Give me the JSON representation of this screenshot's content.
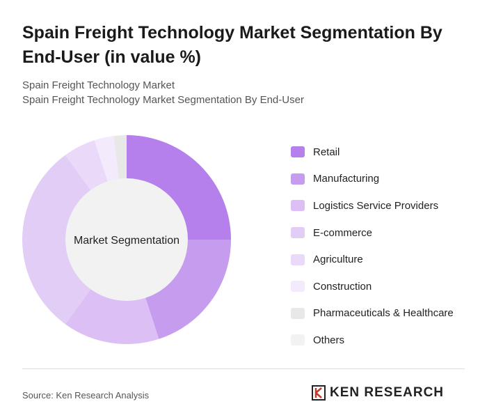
{
  "title": "Spain Freight Technology Market Segmentation By End-User (in value %)",
  "subtitle1": "Spain Freight Technology Market",
  "subtitle2": "Spain Freight Technology Market Segmentation By End-User",
  "source": "Source: Ken Research Analysis",
  "logo": "KEN RESEARCH",
  "chart_data": {
    "type": "pie",
    "variant": "donut",
    "center_label": "Market Segmentation",
    "legend_position": "right",
    "categories": [
      "Retail",
      "Manufacturing",
      "Logistics Service Providers",
      "E-commerce",
      "Agriculture",
      "Construction",
      "Pharmaceuticals & Healthcare",
      "Others"
    ],
    "values": [
      25,
      20,
      15,
      30,
      5,
      3,
      2,
      0
    ],
    "colors": [
      "#b580eb",
      "#c59cee",
      "#dbbff5",
      "#e2cdf6",
      "#ead9f9",
      "#f3ebfc",
      "#e8e8e8",
      "#f2f2f2"
    ]
  }
}
